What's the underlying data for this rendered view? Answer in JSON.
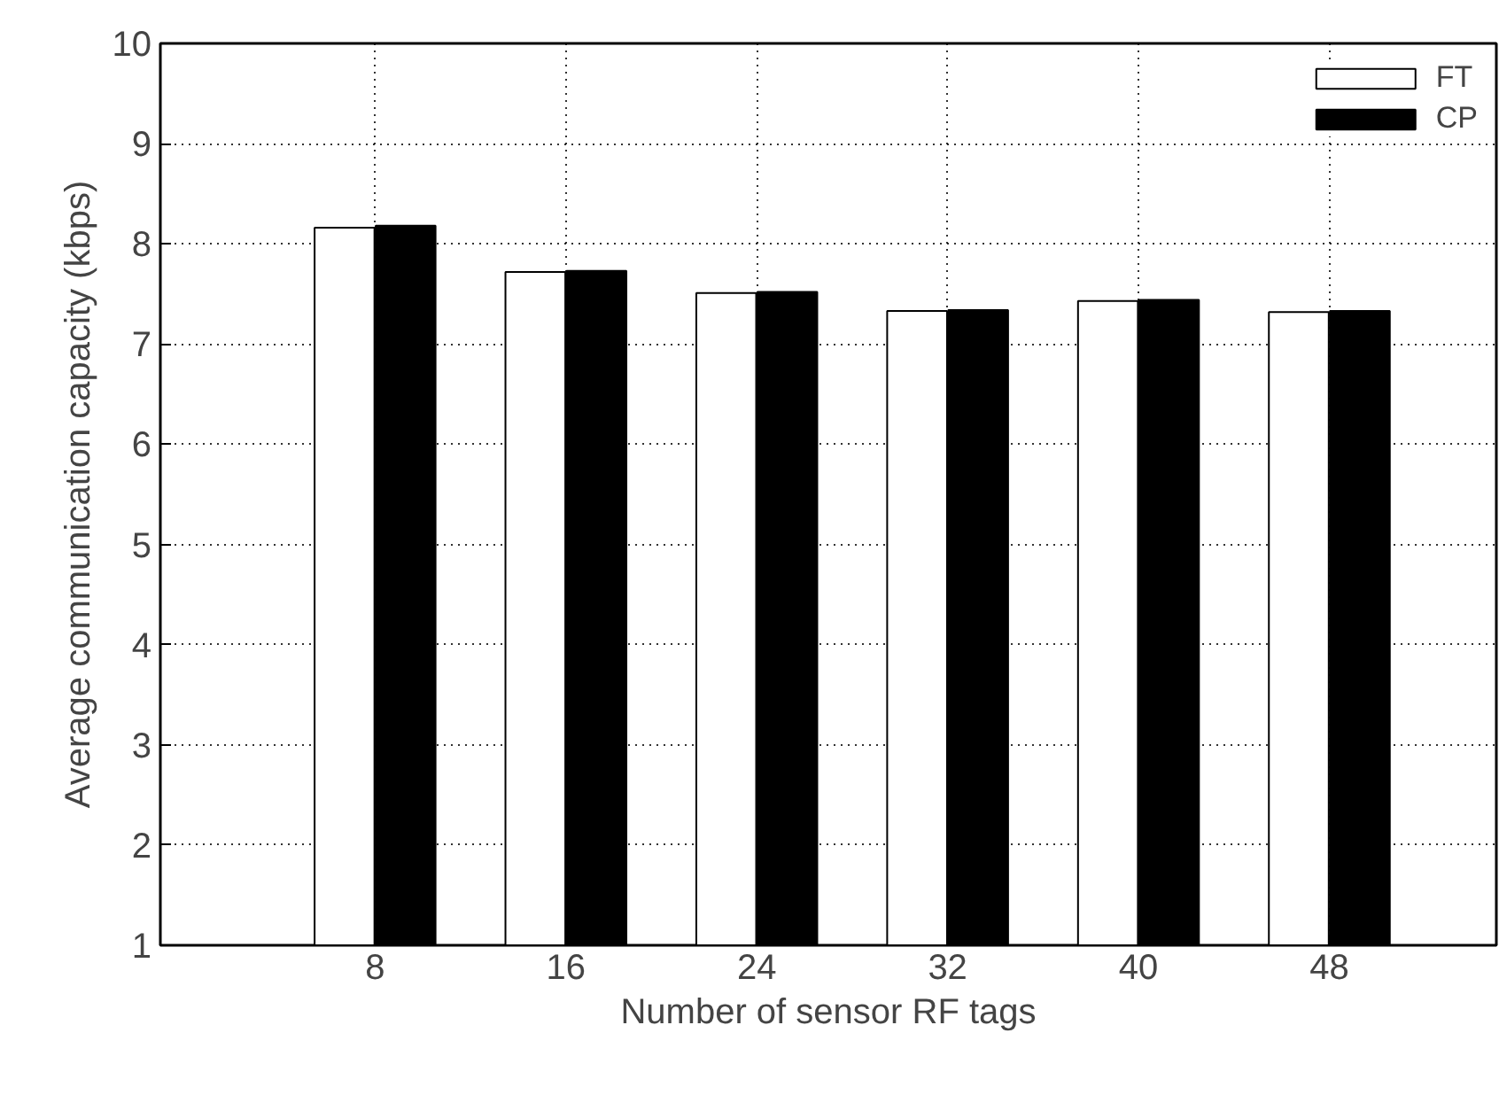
{
  "chart_data": {
    "type": "bar",
    "xlabel": "Number of sensor RF tags",
    "ylabel": "Average communication capacity (kbps)",
    "x": [
      8,
      16,
      24,
      32,
      40,
      48
    ],
    "series": [
      {
        "name": "FT",
        "color": "#ffffff",
        "values": [
          8.16,
          7.72,
          7.51,
          7.33,
          7.43,
          7.32
        ]
      },
      {
        "name": "CP",
        "color": "#000000",
        "values": [
          8.18,
          7.73,
          7.52,
          7.34,
          7.44,
          7.33
        ]
      }
    ],
    "xlim": [
      -1,
      55
    ],
    "xticks": [
      8,
      16,
      24,
      32,
      40,
      48
    ],
    "ylim": [
      1,
      10
    ],
    "yticks": [
      1,
      2,
      3,
      4,
      5,
      6,
      7,
      8,
      9,
      10
    ],
    "grid": true,
    "legend": "top right"
  }
}
